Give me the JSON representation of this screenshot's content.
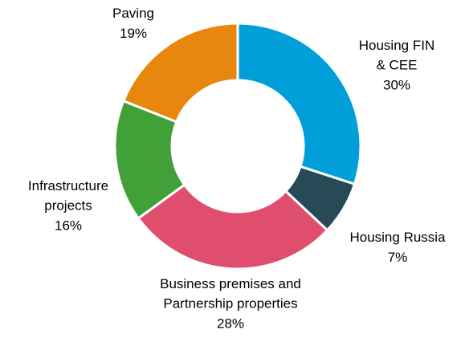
{
  "chart_data": {
    "type": "donut",
    "categories": [
      "Housing FIN & CEE",
      "Housing Russia",
      "Business premises and Partnership properties",
      "Infrastructure projects",
      "Paving"
    ],
    "values": [
      30,
      7,
      28,
      16,
      19
    ],
    "value_labels": [
      "30%",
      "7%",
      "28%",
      "16%",
      "19%"
    ],
    "colors": [
      "#009fda",
      "#284a57",
      "#e04e6e",
      "#41a037",
      "#e8870e"
    ]
  }
}
